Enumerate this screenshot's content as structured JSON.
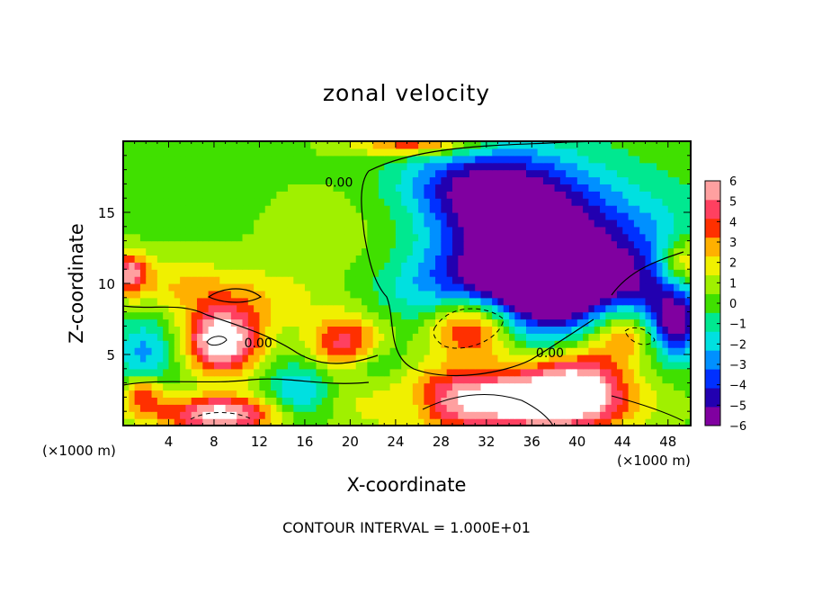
{
  "chart_data": {
    "type": "heatmap",
    "title": "zonal velocity",
    "xlabel": "X-coordinate",
    "ylabel": "Z-coordinate",
    "x_unit_label": "(×1000 m)",
    "xlim": [
      0,
      50
    ],
    "ylim": [
      0,
      20
    ],
    "x_ticks": [
      4,
      8,
      12,
      16,
      20,
      24,
      28,
      32,
      36,
      40,
      44,
      48
    ],
    "x_tick_labels": [
      "4",
      "8",
      "12",
      "16",
      "20",
      "24",
      "28",
      "32",
      "36",
      "40",
      "44",
      "48"
    ],
    "y_ticks": [
      5,
      10,
      15
    ],
    "y_tick_labels": [
      "5",
      "10",
      "15"
    ],
    "colorbar": {
      "min": -6,
      "max": 6,
      "ticks": [
        6,
        5,
        4,
        3,
        2,
        1,
        0,
        -1,
        -2,
        -3,
        -4,
        -5,
        -6
      ],
      "tick_labels": [
        "6",
        "5",
        "4",
        "3",
        "2",
        "1",
        "0",
        "−1",
        "−2",
        "−3",
        "−4",
        "−5",
        "−6"
      ],
      "colors": [
        "#8000a0",
        "#2200b0",
        "#0030ff",
        "#0090ff",
        "#00e0e0",
        "#00e890",
        "#40e000",
        "#a0f000",
        "#f0f000",
        "#ffb000",
        "#ff3000",
        "#ff4060",
        "#ffa0a0"
      ]
    },
    "contour_labels": [
      {
        "text": "0.00",
        "x": 19.0,
        "y": 16.8
      },
      {
        "text": "0.00",
        "x": 11.9,
        "y": 5.5
      },
      {
        "text": "0.00",
        "x": 37.6,
        "y": 4.8
      }
    ],
    "features": [
      {
        "kind": "min",
        "x": 39.5,
        "y": 11.0,
        "value": -6,
        "rx": 10.0,
        "ry": 5.5
      },
      {
        "kind": "min",
        "x": 34.0,
        "y": 15.5,
        "value": -5,
        "rx": 6.5,
        "ry": 4.0
      },
      {
        "kind": "min",
        "x": 33.0,
        "y": 9.5,
        "value": -4.5,
        "rx": 9.0,
        "ry": 3.0
      },
      {
        "kind": "min",
        "x": 29.0,
        "y": 17.0,
        "value": -2.5,
        "rx": 6.0,
        "ry": 2.5
      },
      {
        "kind": "min",
        "x": 46.5,
        "y": 7.5,
        "value": -3.5,
        "rx": 4.0,
        "ry": 2.8
      },
      {
        "kind": "min",
        "x": 2.0,
        "y": 5.0,
        "value": -3,
        "rx": 2.8,
        "ry": 2.5
      },
      {
        "kind": "min",
        "x": 15.5,
        "y": 2.5,
        "value": -3,
        "rx": 2.8,
        "ry": 2.0
      },
      {
        "kind": "min",
        "x": 22.0,
        "y": 4.5,
        "value": -2.5,
        "rx": 2.8,
        "ry": 2.0
      },
      {
        "kind": "min",
        "x": 25.5,
        "y": 1.5,
        "value": -2,
        "rx": 2.5,
        "ry": 1.5
      },
      {
        "kind": "min",
        "x": 48.5,
        "y": 7.0,
        "value": -4,
        "rx": 2.0,
        "ry": 2.0
      },
      {
        "kind": "max",
        "x": 30.8,
        "y": 7.2,
        "value": 7,
        "rx": 4.0,
        "ry": 2.4
      },
      {
        "kind": "max",
        "x": 44.6,
        "y": 6.8,
        "value": 7,
        "rx": 3.5,
        "ry": 2.2
      },
      {
        "kind": "max",
        "x": 33.0,
        "y": 1.8,
        "value": 7,
        "rx": 10.0,
        "ry": 2.3
      },
      {
        "kind": "max",
        "x": 8.7,
        "y": 6.0,
        "value": 7,
        "rx": 3.4,
        "ry": 2.4
      },
      {
        "kind": "max",
        "x": 8.5,
        "y": 0.8,
        "value": 6.5,
        "rx": 5.0,
        "ry": 1.3
      },
      {
        "kind": "max",
        "x": 20.0,
        "y": 5.8,
        "value": 5,
        "rx": 3.5,
        "ry": 2.0
      },
      {
        "kind": "max",
        "x": 40.0,
        "y": 3.0,
        "value": 5,
        "rx": 4.5,
        "ry": 3.0
      },
      {
        "kind": "max",
        "x": 1.8,
        "y": 2.2,
        "value": 4,
        "rx": 2.0,
        "ry": 1.6
      },
      {
        "kind": "max",
        "x": 0.5,
        "y": 10.8,
        "value": 4.5,
        "rx": 1.6,
        "ry": 1.4
      },
      {
        "kind": "max",
        "x": 49.5,
        "y": 11.5,
        "value": 4,
        "rx": 2.2,
        "ry": 1.8
      },
      {
        "kind": "max",
        "x": 26.0,
        "y": 19.8,
        "value": 4,
        "rx": 5.5,
        "ry": 0.8
      },
      {
        "kind": "max",
        "x": 4.0,
        "y": 10.0,
        "value": 1.8,
        "rx": 6.0,
        "ry": 2.0
      },
      {
        "kind": "max",
        "x": 12.0,
        "y": 9.0,
        "value": 1.5,
        "rx": 6.0,
        "ry": 2.0
      },
      {
        "kind": "max",
        "x": 21.0,
        "y": 13.0,
        "value": 0.8,
        "rx": 9.0,
        "ry": 5.0
      }
    ]
  },
  "footer": {
    "contour_interval": "CONTOUR INTERVAL = 1.000E+01"
  }
}
